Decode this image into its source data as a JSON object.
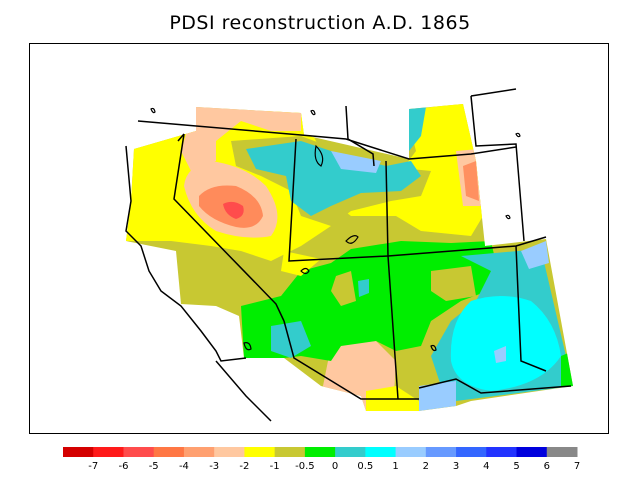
{
  "title": "PDSI reconstruction A.D. 1865",
  "colorbar": {
    "colors": [
      "#d40000",
      "#ff1a1a",
      "#ff4c4c",
      "#ff7744",
      "#ffa070",
      "#ffc8a0",
      "#ffff00",
      "#c8c832",
      "#00ee00",
      "#33cccc",
      "#00ffff",
      "#99ccff",
      "#6699ff",
      "#3366ff",
      "#2233ff",
      "#0000dd",
      "#888888"
    ],
    "tick_labels": [
      "-7",
      "-6",
      "-5",
      "-4",
      "-3",
      "-2",
      "-1",
      "-0.5",
      "0",
      "0.5",
      "1",
      "2",
      "3",
      "4",
      "5",
      "6",
      "7"
    ]
  }
}
